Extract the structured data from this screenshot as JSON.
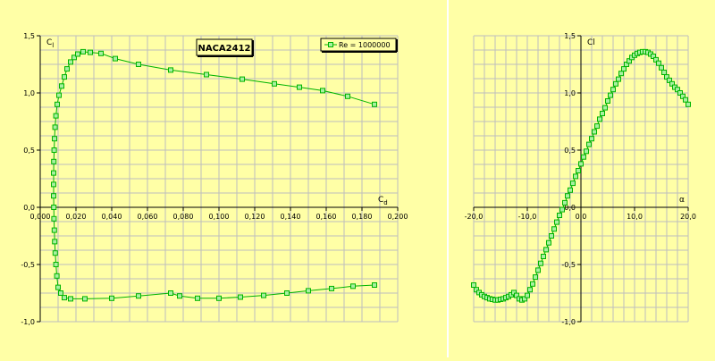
{
  "colors": {
    "background": "#ffffa6",
    "grid": "#bdbdbd",
    "axis": "#000000",
    "series": "#00b400",
    "marker_fill": "#a8f0a0"
  },
  "chart_data": [
    {
      "type": "line",
      "title": "NACA2412",
      "xlabel": "Cd",
      "ylabel": "Cl",
      "xlim": [
        0,
        0.2
      ],
      "ylim": [
        -1.0,
        1.5
      ],
      "x_ticks": [
        0,
        0.02,
        0.04,
        0.06,
        0.08,
        0.1,
        0.12,
        0.14,
        0.16,
        0.18,
        0.2
      ],
      "x_tick_labels": [
        "0,000",
        "0,020",
        "0,040",
        "0,060",
        "0,080",
        "0,100",
        "0,120",
        "0,140",
        "0,160",
        "0,180",
        "0,200"
      ],
      "y_ticks": [
        -1.0,
        -0.5,
        0.0,
        0.5,
        1.0,
        1.5
      ],
      "y_tick_labels": [
        "-1,0",
        "-0,5",
        "0,0",
        "0,5",
        "1,0",
        "1,5"
      ],
      "grid": true,
      "legend": "top-right",
      "series": [
        {
          "name": "Re = 1000000",
          "points": [
            [
              0.187,
              -0.68
            ],
            [
              0.175,
              -0.69
            ],
            [
              0.163,
              -0.71
            ],
            [
              0.15,
              -0.73
            ],
            [
              0.138,
              -0.75
            ],
            [
              0.125,
              -0.77
            ],
            [
              0.112,
              -0.785
            ],
            [
              0.1,
              -0.795
            ],
            [
              0.088,
              -0.795
            ],
            [
              0.078,
              -0.775
            ],
            [
              0.073,
              -0.75
            ],
            [
              0.055,
              -0.775
            ],
            [
              0.04,
              -0.795
            ],
            [
              0.025,
              -0.8
            ],
            [
              0.017,
              -0.8
            ],
            [
              0.0135,
              -0.79
            ],
            [
              0.0115,
              -0.75
            ],
            [
              0.01,
              -0.7
            ],
            [
              0.0093,
              -0.6
            ],
            [
              0.0088,
              -0.5
            ],
            [
              0.0084,
              -0.4
            ],
            [
              0.0081,
              -0.3
            ],
            [
              0.0079,
              -0.2
            ],
            [
              0.0077,
              -0.1
            ],
            [
              0.0076,
              0.0
            ],
            [
              0.0075,
              0.1
            ],
            [
              0.0075,
              0.2
            ],
            [
              0.0075,
              0.3
            ],
            [
              0.0076,
              0.4
            ],
            [
              0.0078,
              0.5
            ],
            [
              0.008,
              0.6
            ],
            [
              0.0083,
              0.7
            ],
            [
              0.0088,
              0.8
            ],
            [
              0.0095,
              0.9
            ],
            [
              0.0105,
              0.98
            ],
            [
              0.012,
              1.06
            ],
            [
              0.0135,
              1.14
            ],
            [
              0.015,
              1.21
            ],
            [
              0.017,
              1.27
            ],
            [
              0.019,
              1.31
            ],
            [
              0.021,
              1.34
            ],
            [
              0.024,
              1.36
            ],
            [
              0.028,
              1.355
            ],
            [
              0.034,
              1.345
            ],
            [
              0.042,
              1.3
            ],
            [
              0.055,
              1.25
            ],
            [
              0.073,
              1.2
            ],
            [
              0.093,
              1.16
            ],
            [
              0.113,
              1.12
            ],
            [
              0.131,
              1.08
            ],
            [
              0.145,
              1.05
            ],
            [
              0.158,
              1.02
            ],
            [
              0.172,
              0.97
            ],
            [
              0.187,
              0.9
            ]
          ]
        }
      ]
    },
    {
      "type": "line",
      "title": "",
      "xlabel": "α",
      "ylabel": "Cl",
      "xlim": [
        -20,
        20
      ],
      "ylim": [
        -1.0,
        1.5
      ],
      "x_ticks": [
        -20,
        -10,
        0,
        10,
        20
      ],
      "x_tick_labels": [
        "-20,0",
        "-10,0",
        "0,0",
        "10,0",
        "20,0"
      ],
      "y_ticks": [
        -1.0,
        -0.5,
        0.0,
        0.5,
        1.0,
        1.5
      ],
      "y_tick_labels": [
        "-1,0",
        "-0,5",
        "0,0",
        "0,5",
        "1,0",
        "1,5"
      ],
      "grid": true,
      "series": [
        {
          "points": [
            [
              -20.0,
              -0.68
            ],
            [
              -19.5,
              -0.72
            ],
            [
              -19.0,
              -0.745
            ],
            [
              -18.5,
              -0.765
            ],
            [
              -18.0,
              -0.78
            ],
            [
              -17.5,
              -0.79
            ],
            [
              -17.0,
              -0.8
            ],
            [
              -16.5,
              -0.805
            ],
            [
              -16.0,
              -0.81
            ],
            [
              -15.5,
              -0.81
            ],
            [
              -15.0,
              -0.805
            ],
            [
              -14.5,
              -0.8
            ],
            [
              -14.0,
              -0.79
            ],
            [
              -13.5,
              -0.78
            ],
            [
              -13.0,
              -0.765
            ],
            [
              -12.5,
              -0.745
            ],
            [
              -12.0,
              -0.77
            ],
            [
              -11.5,
              -0.8
            ],
            [
              -11.0,
              -0.81
            ],
            [
              -10.5,
              -0.8
            ],
            [
              -10.0,
              -0.77
            ],
            [
              -9.5,
              -0.72
            ],
            [
              -9.0,
              -0.67
            ],
            [
              -8.5,
              -0.61
            ],
            [
              -8.0,
              -0.55
            ],
            [
              -7.5,
              -0.49
            ],
            [
              -7.0,
              -0.43
            ],
            [
              -6.5,
              -0.37
            ],
            [
              -6.0,
              -0.31
            ],
            [
              -5.5,
              -0.25
            ],
            [
              -5.0,
              -0.19
            ],
            [
              -4.5,
              -0.13
            ],
            [
              -4.0,
              -0.07
            ],
            [
              -3.5,
              -0.02
            ],
            [
              -3.0,
              0.04
            ],
            [
              -2.5,
              0.1
            ],
            [
              -2.0,
              0.15
            ],
            [
              -1.5,
              0.21
            ],
            [
              -1.0,
              0.27
            ],
            [
              -0.5,
              0.32
            ],
            [
              0.0,
              0.38
            ],
            [
              0.5,
              0.44
            ],
            [
              1.0,
              0.49
            ],
            [
              1.5,
              0.55
            ],
            [
              2.0,
              0.6
            ],
            [
              2.5,
              0.66
            ],
            [
              3.0,
              0.71
            ],
            [
              3.5,
              0.77
            ],
            [
              4.0,
              0.82
            ],
            [
              4.5,
              0.87
            ],
            [
              5.0,
              0.93
            ],
            [
              5.5,
              0.98
            ],
            [
              6.0,
              1.03
            ],
            [
              6.5,
              1.08
            ],
            [
              7.0,
              1.12
            ],
            [
              7.5,
              1.17
            ],
            [
              8.0,
              1.21
            ],
            [
              8.5,
              1.25
            ],
            [
              9.0,
              1.28
            ],
            [
              9.5,
              1.31
            ],
            [
              10.0,
              1.33
            ],
            [
              10.5,
              1.345
            ],
            [
              11.0,
              1.355
            ],
            [
              11.5,
              1.36
            ],
            [
              12.0,
              1.36
            ],
            [
              12.5,
              1.355
            ],
            [
              13.0,
              1.34
            ],
            [
              13.5,
              1.32
            ],
            [
              14.0,
              1.29
            ],
            [
              14.5,
              1.26
            ],
            [
              15.0,
              1.22
            ],
            [
              15.5,
              1.18
            ],
            [
              16.0,
              1.14
            ],
            [
              16.5,
              1.11
            ],
            [
              17.0,
              1.08
            ],
            [
              17.5,
              1.05
            ],
            [
              18.0,
              1.03
            ],
            [
              18.5,
              1.0
            ],
            [
              19.0,
              0.97
            ],
            [
              19.5,
              0.94
            ],
            [
              20.0,
              0.9
            ]
          ]
        }
      ]
    }
  ]
}
